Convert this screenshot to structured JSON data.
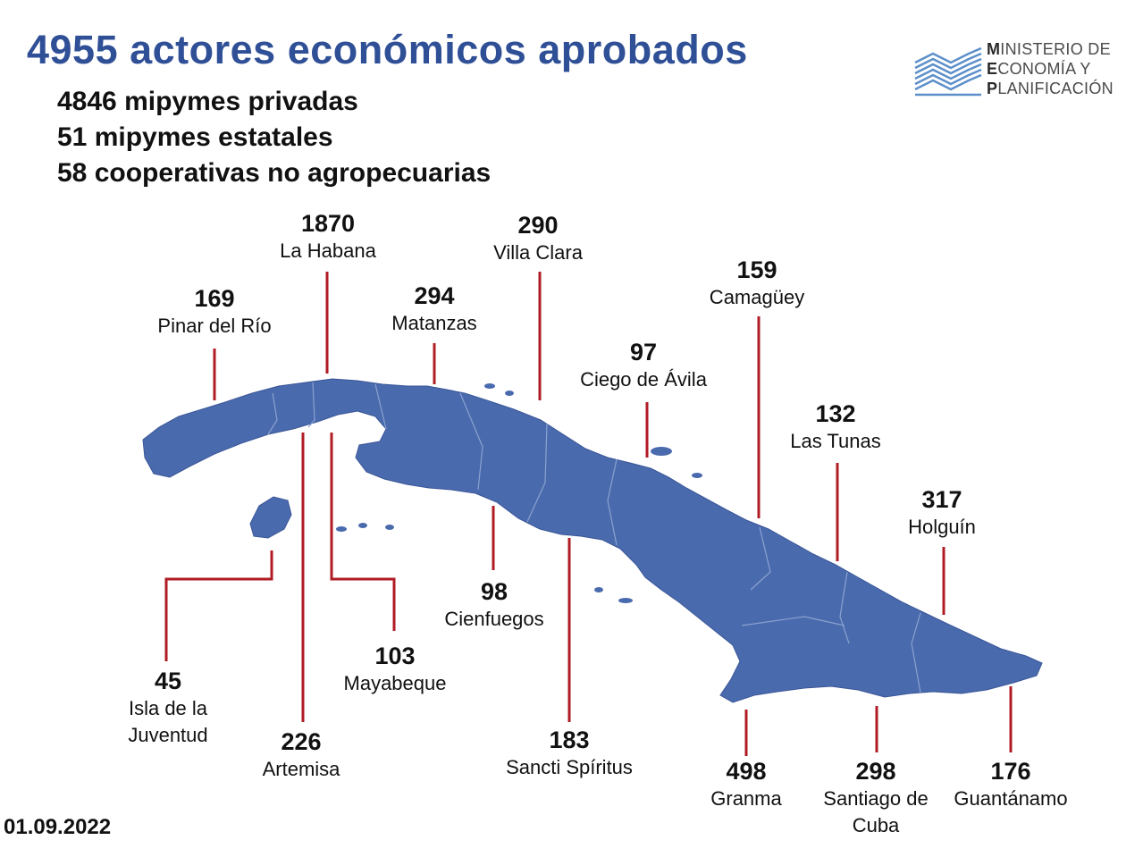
{
  "header": {
    "title": "4955 actores económicos aprobados",
    "lines": [
      "4846 mipymes privadas",
      "51 mipymes estatales",
      "58 cooperativas no agropecuarias"
    ]
  },
  "logo": {
    "line1_cap": "M",
    "line1_rest": "INISTERIO DE",
    "line2_cap": "E",
    "line2_rest": "CONOMÍA  Y",
    "line3_cap": "P",
    "line3_rest": "LANIFICACIÓN"
  },
  "provinces": [
    {
      "name": "Pinar del Río",
      "value": "169"
    },
    {
      "name": "La Habana",
      "value": "1870"
    },
    {
      "name": "Matanzas",
      "value": "294"
    },
    {
      "name": "Villa Clara",
      "value": "290"
    },
    {
      "name": "Ciego de Ávila",
      "value": "97"
    },
    {
      "name": "Camagüey",
      "value": "159"
    },
    {
      "name": "Las Tunas",
      "value": "132"
    },
    {
      "name": "Holguín",
      "value": "317"
    },
    {
      "name": "Isla de la Juventud",
      "value": "45"
    },
    {
      "name": "Artemisa",
      "value": "226"
    },
    {
      "name": "Mayabeque",
      "value": "103"
    },
    {
      "name": "Cienfuegos",
      "value": "98"
    },
    {
      "name": "Sancti Spíritus",
      "value": "183"
    },
    {
      "name": "Granma",
      "value": "498"
    },
    {
      "name": "Santiago de Cuba",
      "value": "298"
    },
    {
      "name": "Guantánamo",
      "value": "176"
    }
  ],
  "date": "01.09.2022",
  "colors": {
    "title": "#2f4f96",
    "island": "#4a6aae",
    "leader_line": "#b01c24",
    "logo_mark": "#5b8fc9"
  }
}
